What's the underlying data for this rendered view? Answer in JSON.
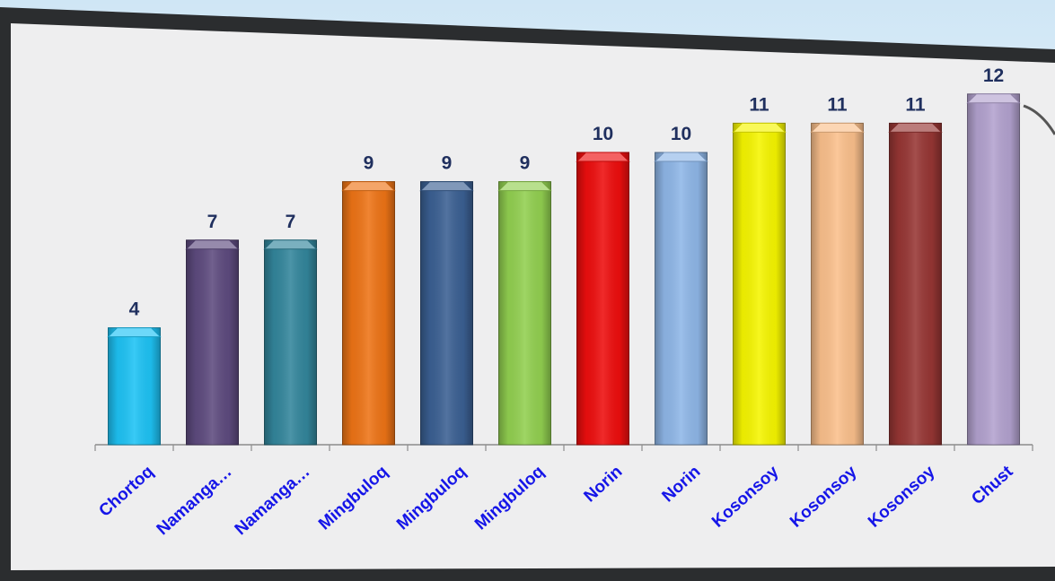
{
  "chart_data": {
    "type": "bar",
    "categories": [
      "Chortoq",
      "Namanga…",
      "Namanga…",
      "Mingbuloq",
      "Mingbuloq",
      "Mingbuloq",
      "Norin",
      "Norin",
      "Kosonsoy",
      "Kosonsoy",
      "Kosonsoy",
      "Chust"
    ],
    "values": [
      4,
      7,
      7,
      9,
      9,
      9,
      10,
      10,
      11,
      11,
      11,
      12
    ],
    "bar_colors": [
      "#1ec3f5",
      "#5e4b7f",
      "#33869c",
      "#ee7416",
      "#3b6093",
      "#92d050",
      "#ee0e0e",
      "#8fb7e8",
      "#f6f600",
      "#fbc08c",
      "#973634",
      "#b3a2cf"
    ],
    "title": "",
    "xlabel": "",
    "ylabel": "",
    "ylim": [
      0,
      13
    ],
    "grid": false,
    "legend": "none",
    "label_color": "#1f2f5e",
    "category_label_color": "#1515e8"
  }
}
